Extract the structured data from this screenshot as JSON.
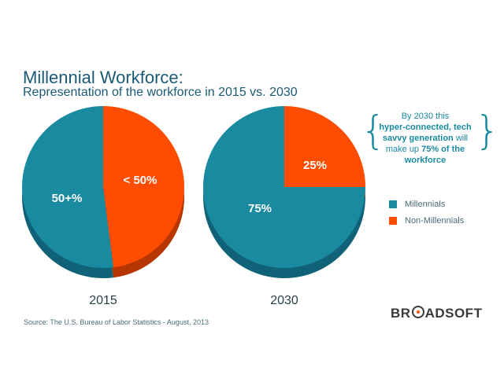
{
  "header": {
    "title": "Millennial Workforce:",
    "subtitle": "Representation of the workforce in 2015 vs. 2030"
  },
  "chart_data": [
    {
      "type": "pie",
      "title": "2015",
      "labels": [
        "Millennials",
        "Non-Millennials"
      ],
      "values": [
        52,
        48
      ],
      "data_labels": [
        "50+%",
        "< 50%"
      ]
    },
    {
      "type": "pie",
      "title": "2030",
      "labels": [
        "Millennials",
        "Non-Millennials"
      ],
      "values": [
        75,
        25
      ],
      "data_labels": [
        "75%",
        "25%"
      ]
    }
  ],
  "legend": {
    "items": [
      {
        "label": "Millennials",
        "color": "#1a8aa0"
      },
      {
        "label": "Non-Millennials",
        "color": "#fe4d00"
      }
    ]
  },
  "callout": {
    "line1": "By 2030 this",
    "bold1": "hyper-connected, tech",
    "bold2": "savvy generation",
    "plain2": " will",
    "plain3": "make up ",
    "bold3": "75% of the",
    "bold4": "workforce"
  },
  "footer": {
    "source": "Source: The U.S. Bureau of Labor Statistics - August, 2013",
    "logo_pre": "BR",
    "logo_post": "ADSOFT"
  },
  "colors": {
    "millennial": "#1a8aa0",
    "millennial_dark": "#0f6277",
    "non_millennial": "#fe4d00",
    "non_millennial_dark": "#b63500"
  }
}
